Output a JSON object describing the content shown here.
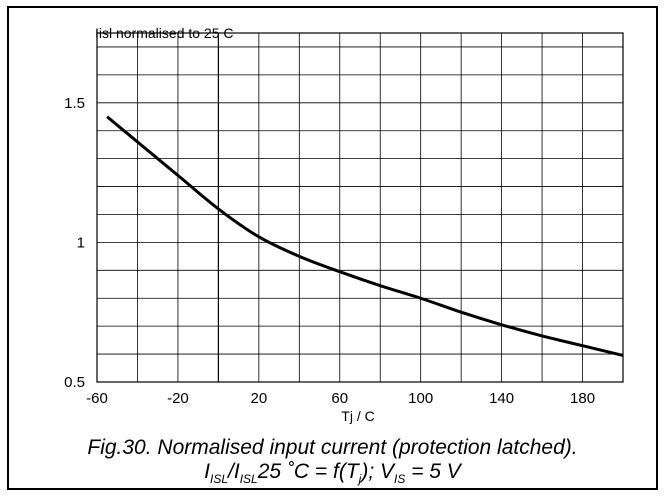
{
  "chart_data": {
    "type": "line",
    "ylabel": "Iisl normalised to 25 C",
    "xlabel": "Tj / C",
    "xlim": [
      -60,
      200
    ],
    "ylim": [
      0.5,
      1.75
    ],
    "x_ticks": [
      "-60",
      "-20",
      "20",
      "60",
      "100",
      "140",
      "180"
    ],
    "y_ticks": [
      "0.5",
      "1",
      "1.5"
    ],
    "grid": true,
    "series": [
      {
        "x": [
          -55,
          -40,
          -20,
          0,
          20,
          40,
          60,
          80,
          100,
          120,
          140,
          160,
          180,
          200
        ],
        "values": [
          1.45,
          1.36,
          1.24,
          1.12,
          1.02,
          0.95,
          0.895,
          0.845,
          0.8,
          0.75,
          0.705,
          0.665,
          0.63,
          0.595
        ]
      }
    ]
  },
  "caption": {
    "line1": "Fig.30.  Normalised input current (protection latched).",
    "line2": {
      "p1": "I",
      "s1": "ISL",
      "p2": "/I",
      "s2": "ISL",
      "p3": "25 ˚C = f(T",
      "s3": "j",
      "p4": "); V",
      "s4": "IS",
      "p5": " = 5 V"
    }
  }
}
